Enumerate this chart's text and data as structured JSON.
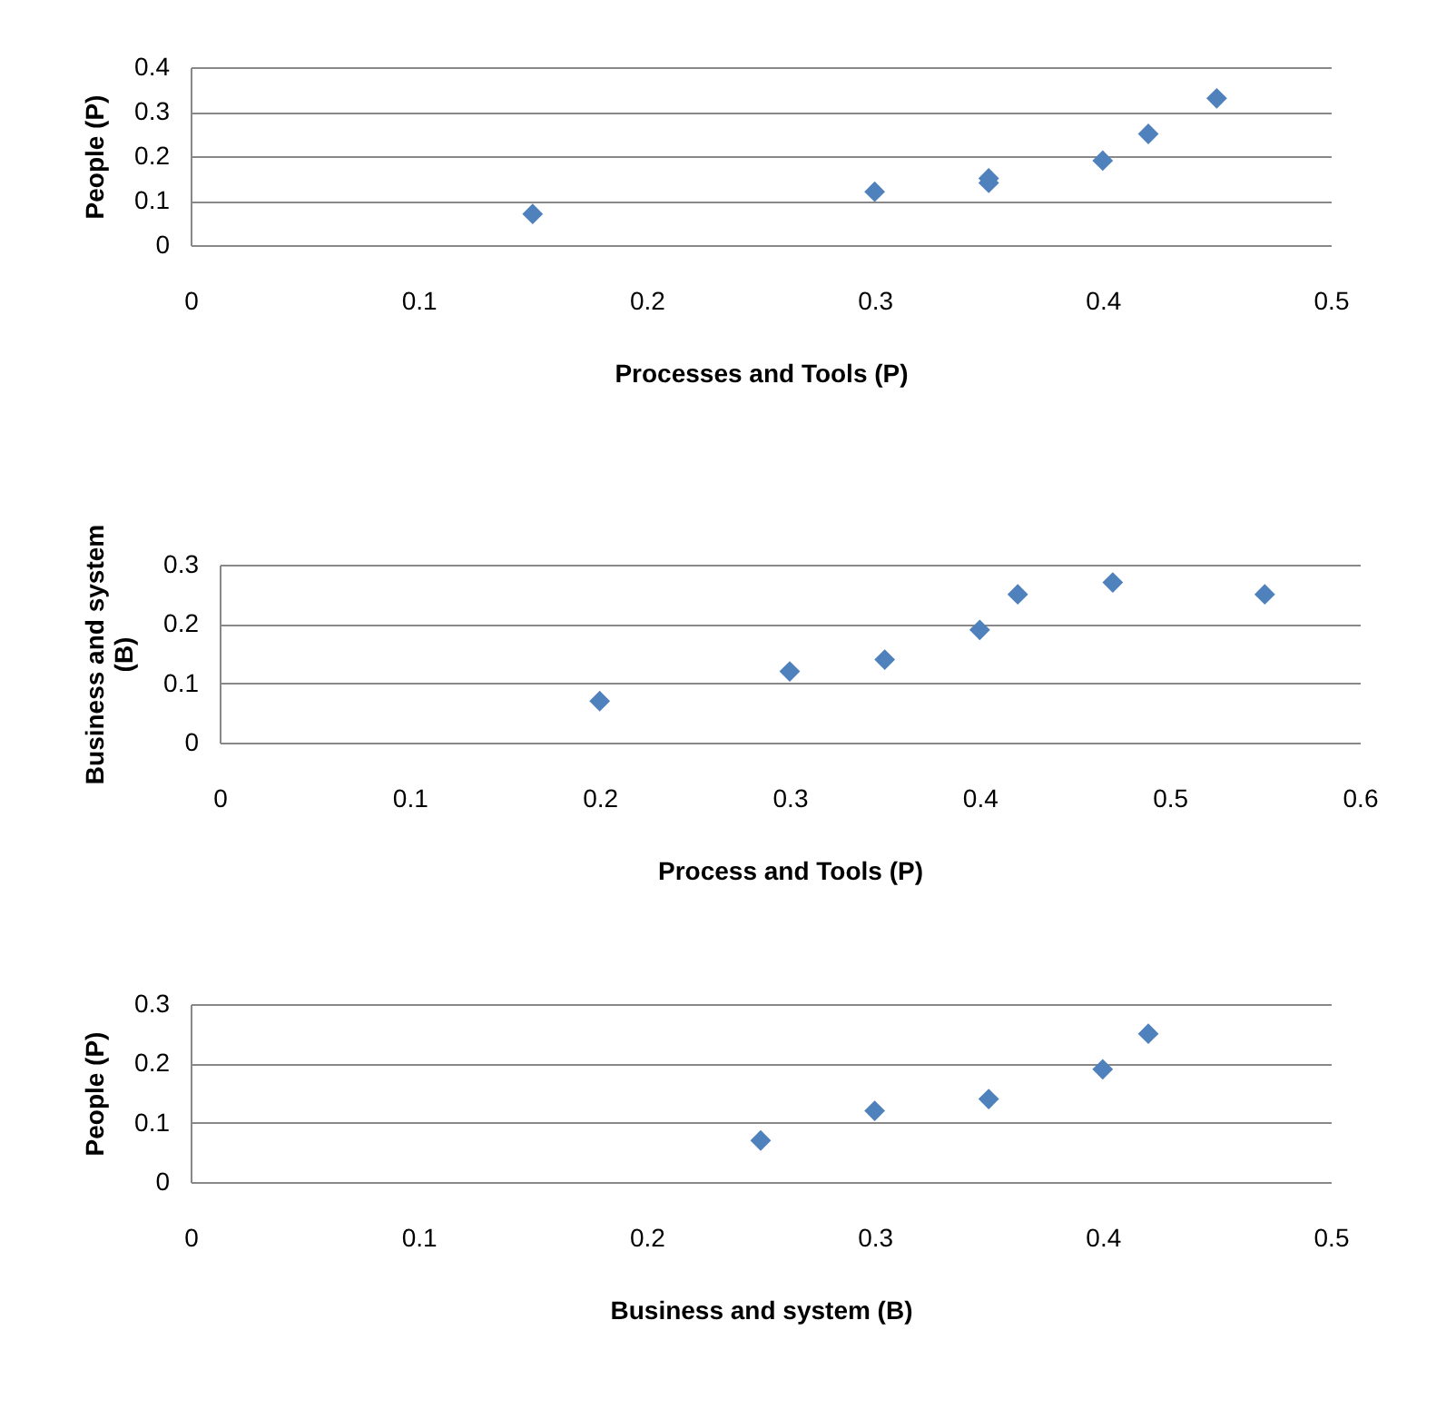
{
  "chart_data": [
    {
      "type": "scatter",
      "x": [
        0.15,
        0.3,
        0.35,
        0.35,
        0.4,
        0.42,
        0.45
      ],
      "series": [
        {
          "color": "#4f81bd",
          "values": [
            0.07,
            0.12,
            0.14,
            0.15,
            0.19,
            0.25,
            0.33
          ]
        }
      ],
      "xlabel": "Processes and Tools (P)",
      "ylabel": "People (P)",
      "xlim": [
        0,
        0.5
      ],
      "xticks": [
        0,
        0.1,
        0.2,
        0.3,
        0.4,
        0.5
      ],
      "ylim": [
        0,
        0.4
      ],
      "yticks": [
        0,
        0.1,
        0.2,
        0.3,
        0.4
      ],
      "grid": "y",
      "marker": "diamond"
    },
    {
      "type": "scatter",
      "x": [
        0.2,
        0.3,
        0.35,
        0.4,
        0.42,
        0.47,
        0.55
      ],
      "series": [
        {
          "color": "#4f81bd",
          "values": [
            0.07,
            0.12,
            0.14,
            0.19,
            0.25,
            0.27,
            0.25
          ]
        }
      ],
      "xlabel": "Process and Tools (P)",
      "ylabel": "Business and system (B)",
      "xlim": [
        0,
        0.6
      ],
      "xticks": [
        0,
        0.1,
        0.2,
        0.3,
        0.4,
        0.5,
        0.6
      ],
      "ylim": [
        0,
        0.3
      ],
      "yticks": [
        0,
        0.1,
        0.2,
        0.3
      ],
      "grid": "y",
      "marker": "diamond"
    },
    {
      "type": "scatter",
      "x": [
        0.25,
        0.3,
        0.35,
        0.4,
        0.42
      ],
      "series": [
        {
          "color": "#4f81bd",
          "values": [
            0.07,
            0.12,
            0.14,
            0.19,
            0.25
          ]
        }
      ],
      "xlabel": "Business and system (B)",
      "ylabel": "People (P)",
      "xlim": [
        0,
        0.5
      ],
      "xticks": [
        0,
        0.1,
        0.2,
        0.3,
        0.4,
        0.5
      ],
      "ylim": [
        0,
        0.3
      ],
      "yticks": [
        0,
        0.1,
        0.2,
        0.3
      ],
      "grid": "y",
      "marker": "diamond"
    }
  ]
}
